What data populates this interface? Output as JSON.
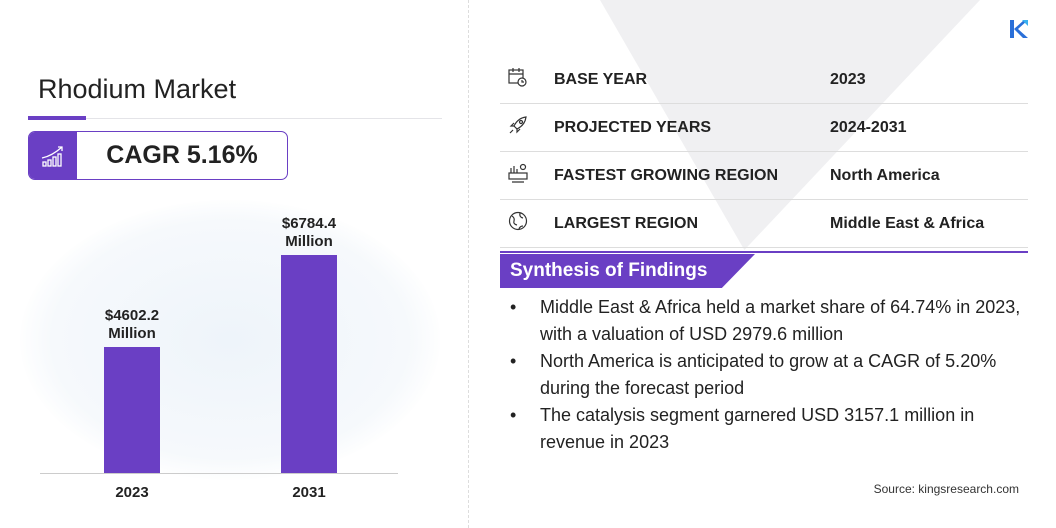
{
  "title": "Rhodium Market",
  "cagr": "CAGR 5.16%",
  "chart_data": {
    "type": "bar",
    "categories": [
      "2023",
      "2031"
    ],
    "values": [
      4602.2,
      6784.4
    ],
    "data_labels": [
      "$4602.2 Million",
      "$6784.4 Million"
    ],
    "color": "#6a3fc4"
  },
  "chart_labels": {
    "v0a": "$4602.2",
    "v0b": "Million",
    "v1a": "$6784.4",
    "v1b": "Million"
  },
  "facts": [
    {
      "icon": "calendar-icon",
      "label": "BASE YEAR",
      "value": "2023"
    },
    {
      "icon": "rocket-icon",
      "label": "PROJECTED YEARS",
      "value": "2024-2031"
    },
    {
      "icon": "growth-region-icon",
      "label": "FASTEST GROWING REGION",
      "value": "North America"
    },
    {
      "icon": "globe-icon",
      "label": "LARGEST REGION",
      "value": "Middle East & Africa"
    }
  ],
  "synthesis": {
    "heading": "Synthesis of Findings",
    "items": [
      "Middle East & Africa held a market share of 64.74% in 2023, with a valuation of USD 2979.6 million",
      "North America is anticipated to grow at a CAGR of 5.20% during the forecast period",
      "The catalysis segment garnered USD 3157.1 million in revenue in 2023"
    ]
  },
  "source": "Source:  kingsresearch.com",
  "accent": "#6a3fc4"
}
